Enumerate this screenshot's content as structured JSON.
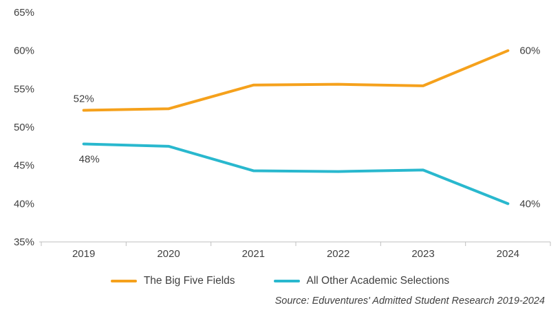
{
  "chart_data": {
    "type": "line",
    "title": "",
    "x": [
      "2019",
      "2020",
      "2021",
      "2022",
      "2023",
      "2024"
    ],
    "series": [
      {
        "name": "The Big Five Fields",
        "color": "#F5A11C",
        "values": [
          52.2,
          52.4,
          55.5,
          55.6,
          55.4,
          60
        ],
        "start_label": "52%",
        "end_label": "60%"
      },
      {
        "name": "All Other Academic Selections",
        "color": "#29B8CE",
        "values": [
          47.8,
          47.5,
          44.3,
          44.2,
          44.4,
          40
        ],
        "start_label": "48%",
        "end_label": "40%"
      }
    ],
    "ylim": [
      35,
      65
    ],
    "ytick_step": 5,
    "ytick_suffix": "%",
    "xlabel": "",
    "ylabel": "",
    "grid": false,
    "legend_position": "bottom"
  },
  "source_note": "Source: Eduventures' Admitted Student Research 2019-2024",
  "colors": {
    "axis": "#bfbfbf",
    "text": "#404040"
  }
}
